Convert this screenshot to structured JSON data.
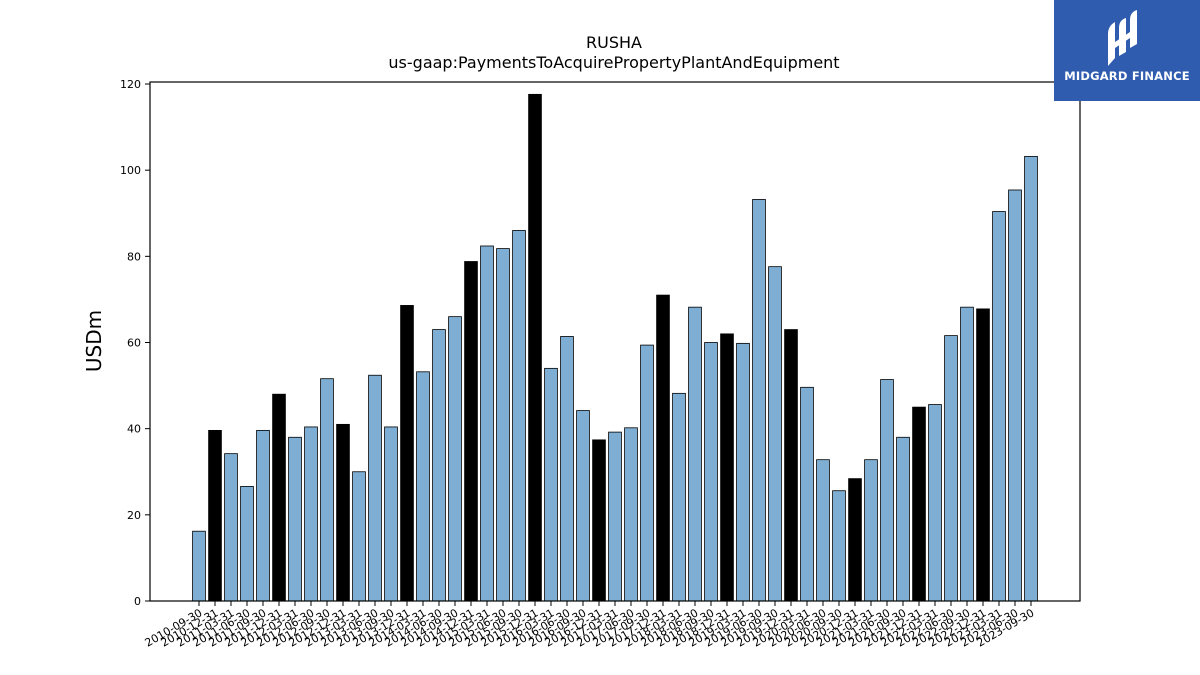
{
  "chart_data": {
    "type": "bar",
    "title": "RUSHA",
    "subtitle": "us-gaap:PaymentsToAcquirePropertyPlantAndEquipment",
    "ylabel": "USDm",
    "xlabel": "",
    "ylim": [
      0,
      120
    ],
    "yticks": [
      0,
      20,
      40,
      60,
      80,
      100,
      120
    ],
    "grid": false,
    "colors": {
      "quarter": "#7eaed3",
      "year_end": "#000000"
    },
    "categories": [
      "2010-09-30",
      "2010-12-31",
      "2011-03-31",
      "2011-06-30",
      "2011-09-30",
      "2011-12-31",
      "2012-03-31",
      "2012-06-30",
      "2012-09-30",
      "2012-12-31",
      "2013-03-31",
      "2013-06-30",
      "2013-09-30",
      "2013-12-31",
      "2014-03-31",
      "2014-06-30",
      "2014-09-30",
      "2014-12-31",
      "2015-03-31",
      "2015-06-30",
      "2015-09-30",
      "2015-12-31",
      "2016-03-31",
      "2016-06-30",
      "2016-09-30",
      "2016-12-31",
      "2017-03-31",
      "2017-06-30",
      "2017-09-30",
      "2017-12-31",
      "2018-03-31",
      "2018-06-30",
      "2018-09-30",
      "2018-12-31",
      "2019-03-31",
      "2019-06-30",
      "2019-09-30",
      "2019-12-31",
      "2020-03-31",
      "2020-06-30",
      "2020-09-30",
      "2020-12-31",
      "2021-03-31",
      "2021-06-30",
      "2021-09-30",
      "2021-12-31",
      "2022-03-31",
      "2022-06-30",
      "2022-09-30",
      "2022-12-31",
      "2023-03-31",
      "2023-06-30",
      "2023-09-30"
    ],
    "values": [
      16.2,
      39.6,
      34.2,
      26.6,
      39.6,
      48.0,
      38.0,
      40.4,
      51.6,
      41.0,
      30.0,
      52.4,
      40.4,
      68.6,
      53.2,
      63.0,
      66.0,
      78.8,
      82.4,
      81.8,
      86.0,
      117.6,
      54.0,
      61.4,
      44.2,
      37.4,
      39.2,
      40.2,
      59.4,
      71.0,
      48.2,
      68.2,
      60.0,
      62.0,
      59.8,
      93.2,
      77.6,
      63.0,
      49.6,
      32.8,
      25.6,
      28.4,
      32.8,
      51.4,
      38.0,
      45.0,
      45.6,
      61.6,
      68.2,
      67.8,
      90.4,
      95.4,
      103.2
    ]
  },
  "logo": {
    "text": "MIDGARD FINANCE",
    "background": "#2f5cae"
  }
}
